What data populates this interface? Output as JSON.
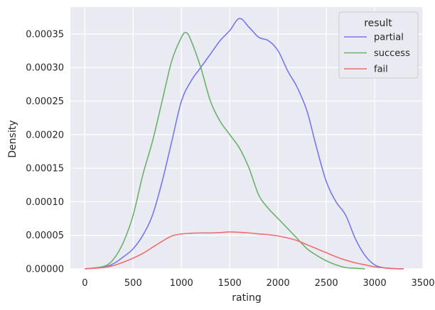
{
  "chart_data": {
    "type": "line",
    "xlabel": "rating",
    "ylabel": "Density",
    "xlim": [
      -150,
      3500
    ],
    "ylim": [
      0,
      0.00039
    ],
    "xticks": [
      0,
      500,
      1000,
      1500,
      2000,
      2500,
      3000,
      3500
    ],
    "xtick_labels": [
      "0",
      "500",
      "1000",
      "1500",
      "2000",
      "2500",
      "3000",
      "3500"
    ],
    "yticks": [
      0,
      5e-05,
      0.0001,
      0.00015,
      0.0002,
      0.00025,
      0.0003,
      0.00035
    ],
    "ytick_labels": [
      "0.00000",
      "0.00005",
      "0.00010",
      "0.00015",
      "0.00020",
      "0.00025",
      "0.00030",
      "0.00035"
    ],
    "grid": true,
    "background": "#eaeaf2",
    "legend": {
      "title": "result",
      "position": "top-right"
    },
    "series": [
      {
        "name": "partial",
        "color": "#7777ee",
        "points": [
          [
            0,
            0
          ],
          [
            200,
            3e-06
          ],
          [
            300,
            8e-06
          ],
          [
            400,
            1.8e-05
          ],
          [
            500,
            3e-05
          ],
          [
            600,
            5e-05
          ],
          [
            700,
            8e-05
          ],
          [
            800,
            0.00013
          ],
          [
            900,
            0.00019
          ],
          [
            1000,
            0.00025
          ],
          [
            1100,
            0.00028
          ],
          [
            1200,
            0.0003
          ],
          [
            1300,
            0.00032
          ],
          [
            1400,
            0.00034
          ],
          [
            1500,
            0.000355
          ],
          [
            1600,
            0.000373
          ],
          [
            1700,
            0.00036
          ],
          [
            1800,
            0.000345
          ],
          [
            1900,
            0.00034
          ],
          [
            2000,
            0.000325
          ],
          [
            2100,
            0.000295
          ],
          [
            2200,
            0.00027
          ],
          [
            2300,
            0.000235
          ],
          [
            2400,
            0.00018
          ],
          [
            2500,
            0.00013
          ],
          [
            2600,
            0.0001
          ],
          [
            2700,
            8e-05
          ],
          [
            2800,
            4.5e-05
          ],
          [
            2900,
            2e-05
          ],
          [
            3000,
            6e-06
          ],
          [
            3100,
            1.5e-06
          ],
          [
            3200,
            3e-07
          ],
          [
            3300,
            0
          ]
        ]
      },
      {
        "name": "success",
        "color": "#6ab26a",
        "points": [
          [
            0,
            0
          ],
          [
            200,
            4e-06
          ],
          [
            300,
            1.5e-05
          ],
          [
            400,
            4e-05
          ],
          [
            500,
            8e-05
          ],
          [
            600,
            0.00014
          ],
          [
            700,
            0.00019
          ],
          [
            800,
            0.00025
          ],
          [
            900,
            0.00031
          ],
          [
            1000,
            0.000345
          ],
          [
            1050,
            0.000352
          ],
          [
            1100,
            0.00034
          ],
          [
            1200,
            0.0003
          ],
          [
            1300,
            0.00025
          ],
          [
            1400,
            0.00022
          ],
          [
            1500,
            0.0002
          ],
          [
            1600,
            0.00018
          ],
          [
            1700,
            0.00015
          ],
          [
            1800,
            0.00011
          ],
          [
            1900,
            9e-05
          ],
          [
            2000,
            7.5e-05
          ],
          [
            2100,
            6e-05
          ],
          [
            2200,
            4.5e-05
          ],
          [
            2300,
            3e-05
          ],
          [
            2400,
            2e-05
          ],
          [
            2500,
            1.2e-05
          ],
          [
            2600,
            6e-06
          ],
          [
            2700,
            2e-06
          ],
          [
            2800,
            1e-06
          ],
          [
            2900,
            0
          ]
        ]
      },
      {
        "name": "fail",
        "color": "#ee6e6e",
        "points": [
          [
            0,
            0
          ],
          [
            200,
            2e-06
          ],
          [
            300,
            5e-06
          ],
          [
            400,
            1e-05
          ],
          [
            500,
            1.6e-05
          ],
          [
            600,
            2.3e-05
          ],
          [
            700,
            3.2e-05
          ],
          [
            800,
            4.1e-05
          ],
          [
            900,
            4.9e-05
          ],
          [
            1000,
            5.2e-05
          ],
          [
            1100,
            5.3e-05
          ],
          [
            1200,
            5.35e-05
          ],
          [
            1300,
            5.35e-05
          ],
          [
            1400,
            5.4e-05
          ],
          [
            1500,
            5.5e-05
          ],
          [
            1600,
            5.45e-05
          ],
          [
            1700,
            5.35e-05
          ],
          [
            1800,
            5.2e-05
          ],
          [
            1900,
            5.1e-05
          ],
          [
            2000,
            4.9e-05
          ],
          [
            2100,
            4.6e-05
          ],
          [
            2200,
            4.2e-05
          ],
          [
            2300,
            3.6e-05
          ],
          [
            2400,
            3e-05
          ],
          [
            2500,
            2.4e-05
          ],
          [
            2600,
            1.8e-05
          ],
          [
            2700,
            1.3e-05
          ],
          [
            2800,
            9e-06
          ],
          [
            2900,
            6e-06
          ],
          [
            3000,
            3e-06
          ],
          [
            3100,
            1.5e-06
          ],
          [
            3200,
            5e-07
          ],
          [
            3300,
            0
          ]
        ]
      }
    ]
  }
}
